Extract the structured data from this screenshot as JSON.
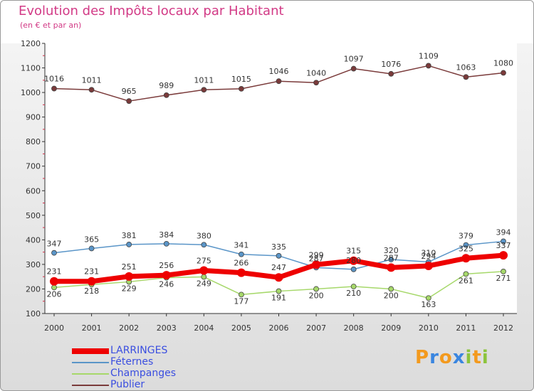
{
  "title": "Evolution des Impôts locaux par Habitant",
  "subtitle": "(en € et par an)",
  "logo": {
    "text": "Proxiti",
    "letters": [
      {
        "ch": "P",
        "color": "#f39a1e"
      },
      {
        "ch": "r",
        "color": "#3a86e0"
      },
      {
        "ch": "o",
        "color": "#f39a1e"
      },
      {
        "ch": "x",
        "color": "#3a86e0"
      },
      {
        "ch": "i",
        "color": "#8cc43c"
      },
      {
        "ch": "t",
        "color": "#f39a1e"
      },
      {
        "ch": "i",
        "color": "#8cc43c"
      }
    ]
  },
  "chart_data": {
    "type": "line",
    "title": "Evolution des Impôts locaux par Habitant",
    "subtitle": "(en € et par an)",
    "x": [
      2000,
      2001,
      2002,
      2003,
      2004,
      2005,
      2006,
      2007,
      2008,
      2009,
      2010,
      2011,
      2012
    ],
    "ylim": [
      100,
      1200
    ],
    "yticks": [
      100,
      200,
      300,
      400,
      500,
      600,
      700,
      800,
      900,
      1000,
      1100,
      1200
    ],
    "grid": false,
    "legend": "bottom-left",
    "series": [
      {
        "name": "LARRINGES",
        "color": "#ee0000",
        "values": [
          231,
          231,
          251,
          256,
          275,
          266,
          247,
          299,
          315,
          287,
          294,
          325,
          337
        ]
      },
      {
        "name": "Féternes",
        "color": "#5a95c8",
        "values": [
          347,
          365,
          381,
          384,
          380,
          341,
          335,
          287,
          280,
          320,
          310,
          379,
          394
        ]
      },
      {
        "name": "Champanges",
        "color": "#a6d86a",
        "values": [
          206,
          218,
          229,
          246,
          249,
          177,
          191,
          200,
          210,
          200,
          163,
          261,
          271
        ]
      },
      {
        "name": "Publier",
        "color": "#7a3a3a",
        "values": [
          1016,
          1011,
          965,
          989,
          1011,
          1015,
          1046,
          1040,
          1097,
          1076,
          1109,
          1063,
          1080
        ]
      }
    ]
  }
}
